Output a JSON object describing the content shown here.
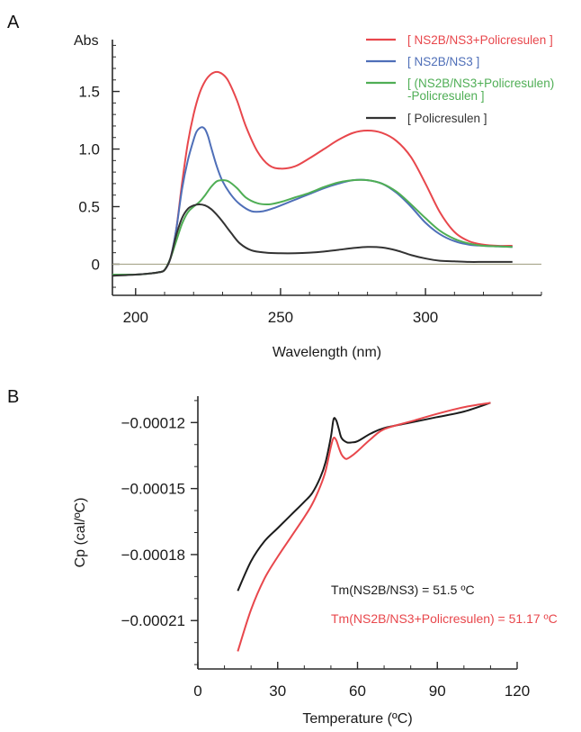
{
  "chart_data": [
    {
      "panel_label": "A",
      "type": "line",
      "ylabel": "Abs",
      "xlabel": "Wavelength (nm)",
      "xlim": [
        192,
        340
      ],
      "ylim": [
        -0.27,
        1.95
      ],
      "xticks": [
        200,
        250,
        300
      ],
      "yticks": [
        0,
        0.5,
        1.0,
        1.5
      ],
      "ytick_labels": [
        "0",
        "0.5",
        "1.0",
        "1.5"
      ],
      "x_minor_step": 10,
      "y_minor_step": 0.1,
      "baseline": {
        "y": 0,
        "color": "#a8a68c"
      },
      "legend_position": "top-right",
      "series": [
        {
          "name": "[ NS2B/NS3+Policresulen ]",
          "color": "#e8474c",
          "x": [
            192,
            200,
            205,
            208,
            210,
            212,
            214,
            216,
            218,
            220,
            222,
            224,
            226,
            228,
            230,
            232,
            235,
            238,
            242,
            246,
            250,
            255,
            260,
            265,
            270,
            275,
            280,
            285,
            290,
            295,
            300,
            305,
            310,
            315,
            320,
            325,
            330
          ],
          "y": [
            -0.09,
            -0.09,
            -0.08,
            -0.07,
            -0.05,
            0.05,
            0.3,
            0.7,
            1.05,
            1.3,
            1.48,
            1.59,
            1.65,
            1.67,
            1.65,
            1.59,
            1.42,
            1.2,
            0.98,
            0.86,
            0.83,
            0.85,
            0.92,
            1.0,
            1.08,
            1.14,
            1.16,
            1.14,
            1.07,
            0.93,
            0.7,
            0.45,
            0.28,
            0.2,
            0.17,
            0.16,
            0.16
          ]
        },
        {
          "name": "[ NS2B/NS3 ]",
          "color": "#4f6fb8",
          "x": [
            192,
            200,
            205,
            208,
            210,
            212,
            214,
            216,
            218,
            220,
            221,
            222,
            223,
            224,
            225,
            226,
            228,
            230,
            233,
            236,
            240,
            244,
            248,
            252,
            256,
            260,
            265,
            270,
            275,
            280,
            285,
            290,
            295,
            300,
            305,
            310,
            315,
            320,
            325,
            330
          ],
          "y": [
            -0.09,
            -0.09,
            -0.08,
            -0.07,
            -0.05,
            0.05,
            0.3,
            0.65,
            0.9,
            1.08,
            1.15,
            1.18,
            1.19,
            1.17,
            1.11,
            1.02,
            0.85,
            0.72,
            0.6,
            0.52,
            0.46,
            0.46,
            0.49,
            0.53,
            0.57,
            0.61,
            0.66,
            0.7,
            0.73,
            0.73,
            0.7,
            0.62,
            0.5,
            0.36,
            0.26,
            0.2,
            0.17,
            0.16,
            0.155,
            0.15
          ]
        },
        {
          "name": "[ (NS2B/NS3+Policresulen) -Policresulen ]",
          "name_lines": [
            "[ (NS2B/NS3+Policresulen)",
            "-Policresulen ]"
          ],
          "color": "#4fae55",
          "x": [
            192,
            200,
            205,
            208,
            210,
            212,
            214,
            216,
            218,
            220,
            222,
            224,
            226,
            228,
            230,
            232,
            235,
            238,
            242,
            246,
            250,
            255,
            260,
            265,
            270,
            275,
            280,
            285,
            290,
            295,
            300,
            305,
            310,
            315,
            320,
            325,
            330
          ],
          "y": [
            -0.09,
            -0.09,
            -0.08,
            -0.07,
            -0.05,
            0.05,
            0.2,
            0.35,
            0.45,
            0.5,
            0.54,
            0.6,
            0.67,
            0.72,
            0.73,
            0.72,
            0.66,
            0.58,
            0.53,
            0.52,
            0.54,
            0.58,
            0.62,
            0.67,
            0.71,
            0.73,
            0.73,
            0.7,
            0.63,
            0.52,
            0.4,
            0.29,
            0.22,
            0.18,
            0.16,
            0.155,
            0.15
          ]
        },
        {
          "name": "[ Policresulen ]",
          "color": "#333333",
          "x": [
            192,
            200,
            205,
            208,
            210,
            212,
            214,
            216,
            218,
            220,
            222,
            224,
            226,
            228,
            230,
            233,
            236,
            240,
            245,
            250,
            255,
            260,
            265,
            270,
            275,
            280,
            285,
            290,
            295,
            300,
            305,
            310,
            315,
            320,
            325,
            330
          ],
          "y": [
            -0.1,
            -0.09,
            -0.08,
            -0.07,
            -0.05,
            0.05,
            0.25,
            0.4,
            0.48,
            0.51,
            0.52,
            0.51,
            0.48,
            0.43,
            0.37,
            0.27,
            0.18,
            0.12,
            0.1,
            0.095,
            0.095,
            0.1,
            0.11,
            0.125,
            0.14,
            0.15,
            0.145,
            0.12,
            0.08,
            0.05,
            0.03,
            0.025,
            0.02,
            0.02,
            0.02,
            0.02
          ]
        }
      ]
    },
    {
      "panel_label": "B",
      "type": "line",
      "ylabel": "Cp (cal/ºC)",
      "xlabel": "Temperature (ºC)",
      "xlim": [
        0,
        120
      ],
      "ylim": [
        -0.000232,
        -0.000108
      ],
      "xticks": [
        0,
        30,
        60,
        90,
        120
      ],
      "yticks": [
        -0.00012,
        -0.00015,
        -0.00018,
        -0.00021
      ],
      "ytick_labels": [
        "-0.00012",
        "-0.00015",
        "-0.00018",
        "-0.00021"
      ],
      "x_minor_step": 10,
      "y_minor_step": 1e-05,
      "series": [
        {
          "name": "NS2B/NS3",
          "color": "#1c1c1c",
          "x": [
            15,
            20,
            25,
            30,
            35,
            40,
            43,
            46,
            48,
            50,
            51,
            52,
            53,
            54,
            56,
            58,
            60,
            65,
            70,
            80,
            90,
            100,
            110
          ],
          "y": [
            -0.0001965,
            -0.000183,
            -0.000174,
            -0.000168,
            -0.000162,
            -0.000156,
            -0.000152,
            -0.000145,
            -0.000138,
            -0.0001265,
            -0.0001185,
            -0.000119,
            -0.000123,
            -0.000127,
            -0.000129,
            -0.000129,
            -0.0001285,
            -0.000125,
            -0.0001225,
            -0.00012,
            -0.0001175,
            -0.000115,
            -0.000111
          ]
        },
        {
          "name": "NS2B/NS3+Policresulen",
          "color": "#e8474c",
          "x": [
            15,
            20,
            25,
            30,
            35,
            40,
            43,
            46,
            48,
            50,
            51,
            52,
            53,
            54,
            55,
            56,
            58,
            60,
            65,
            70,
            80,
            90,
            100,
            110
          ],
          "y": [
            -0.000224,
            -0.000205,
            -0.000191,
            -0.000181,
            -0.000172,
            -0.000163,
            -0.000157,
            -0.000149,
            -0.000142,
            -0.000131,
            -0.000127,
            -0.000128,
            -0.0001315,
            -0.0001345,
            -0.000136,
            -0.0001365,
            -0.000135,
            -0.000133,
            -0.0001275,
            -0.000123,
            -0.0001195,
            -0.000116,
            -0.000113,
            -0.000111
          ]
        }
      ],
      "annotations": [
        {
          "text": "Tm(NS2B/NS3) = 51.5 ºC",
          "color": "#1c1c1c"
        },
        {
          "text": "Tm(NS2B/NS3+Policresulen) = 51.17 ºC",
          "color": "#e8474c"
        }
      ]
    }
  ]
}
